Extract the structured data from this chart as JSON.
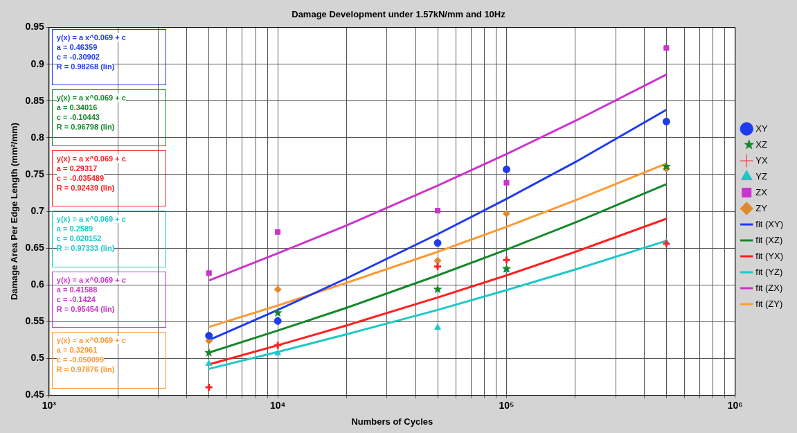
{
  "chart_data": {
    "type": "scatter",
    "title": "Damage Development under 1.57kN/mm and 10Hz",
    "xlabel": "Numbers of Cycles",
    "ylabel": "Damage Area Per Edge Length (mm²/mm)",
    "log": "x",
    "grid": true,
    "legend": "right",
    "xlim": [
      1000,
      1000000
    ],
    "xticks": [
      {
        "value": 1000,
        "label": "10³"
      },
      {
        "value": 2000,
        "label": null
      },
      {
        "value": 3000,
        "label": null
      },
      {
        "value": 4000,
        "label": null
      },
      {
        "value": 5000,
        "label": null
      },
      {
        "value": 6000,
        "label": null
      },
      {
        "value": 7000,
        "label": null
      },
      {
        "value": 8000,
        "label": null
      },
      {
        "value": 9000,
        "label": null
      },
      {
        "value": 10000,
        "label": "10⁴"
      },
      {
        "value": 20000,
        "label": null
      },
      {
        "value": 30000,
        "label": null
      },
      {
        "value": 40000,
        "label": null
      },
      {
        "value": 50000,
        "label": null
      },
      {
        "value": 60000,
        "label": null
      },
      {
        "value": 70000,
        "label": null
      },
      {
        "value": 80000,
        "label": null
      },
      {
        "value": 90000,
        "label": null
      },
      {
        "value": 100000,
        "label": "10⁵"
      },
      {
        "value": 200000,
        "label": null
      },
      {
        "value": 300000,
        "label": null
      },
      {
        "value": 400000,
        "label": null
      },
      {
        "value": 500000,
        "label": null
      },
      {
        "value": 600000,
        "label": null
      },
      {
        "value": 700000,
        "label": null
      },
      {
        "value": 800000,
        "label": null
      },
      {
        "value": 900000,
        "label": null
      },
      {
        "value": 1000000,
        "label": "10⁶"
      }
    ],
    "ylim": [
      0.45,
      0.95
    ],
    "yticks": [
      0.45,
      0.5,
      0.55,
      0.6,
      0.65,
      0.7,
      0.75,
      0.8,
      0.85,
      0.9,
      0.95
    ],
    "x": [
      5000,
      10000,
      50000,
      100000,
      500000
    ],
    "series": [
      {
        "name": "XY",
        "color": "#1f3bf0",
        "marker": "circle",
        "values": [
          0.531,
          0.551,
          0.657,
          0.757,
          0.822
        ]
      },
      {
        "name": "XZ",
        "color": "#14882a",
        "marker": "star",
        "values": [
          0.508,
          0.562,
          0.594,
          0.622,
          0.761
        ]
      },
      {
        "name": "YX",
        "color": "#ff2020",
        "marker": "cross",
        "values": [
          0.461,
          0.518,
          0.625,
          0.634,
          0.656
        ]
      },
      {
        "name": "YZ",
        "color": "#1ec8c8",
        "marker": "triangle",
        "values": [
          0.493,
          0.507,
          0.542,
          0.62,
          0.658
        ]
      },
      {
        "name": "ZX",
        "color": "#cc33cc",
        "marker": "square",
        "values": [
          0.616,
          0.672,
          0.701,
          0.739,
          0.922
        ]
      },
      {
        "name": "ZY",
        "color": "#e08a30",
        "marker": "diamond",
        "values": [
          0.524,
          0.594,
          0.633,
          0.697,
          0.758
        ]
      },
      {
        "name": "fit (XY)",
        "type": "line",
        "color": "#1f3bf0",
        "marker": "none",
        "x": [
          5000,
          10000,
          20000,
          50000,
          100000,
          200000,
          500000
        ],
        "values": [
          0.525,
          0.566,
          0.609,
          0.669,
          0.717,
          0.767,
          0.838
        ]
      },
      {
        "name": "fit (XZ)",
        "type": "line",
        "color": "#14882a",
        "marker": "none",
        "x": [
          5000,
          10000,
          20000,
          50000,
          100000,
          200000,
          500000
        ],
        "values": [
          0.508,
          0.538,
          0.569,
          0.613,
          0.648,
          0.685,
          0.737
        ]
      },
      {
        "name": "fit (YX)",
        "type": "line",
        "color": "#ff2020",
        "marker": "none",
        "x": [
          5000,
          10000,
          20000,
          50000,
          100000,
          200000,
          500000
        ],
        "values": [
          0.492,
          0.518,
          0.545,
          0.583,
          0.613,
          0.645,
          0.69
        ]
      },
      {
        "name": "fit (YZ)",
        "type": "line",
        "color": "#1ec8c8",
        "marker": "none",
        "x": [
          5000,
          10000,
          20000,
          50000,
          100000,
          200000,
          500000
        ],
        "values": [
          0.486,
          0.509,
          0.533,
          0.566,
          0.593,
          0.621,
          0.66
        ]
      },
      {
        "name": "fit (ZX)",
        "type": "line",
        "color": "#cc33cc",
        "marker": "none",
        "x": [
          5000,
          10000,
          20000,
          50000,
          100000,
          200000,
          500000
        ],
        "values": [
          0.606,
          0.643,
          0.681,
          0.735,
          0.778,
          0.823,
          0.886
        ]
      },
      {
        "name": "fit (ZY)",
        "type": "line",
        "color": "#ff9933",
        "marker": "none",
        "x": [
          5000,
          10000,
          20000,
          50000,
          100000,
          200000,
          500000
        ],
        "values": [
          0.543,
          0.572,
          0.603,
          0.645,
          0.679,
          0.715,
          0.765
        ]
      }
    ],
    "annotations": [
      "y(x) = a x^0.069 + c\na = 0.46359\nc = -0.30902\nR = 0.98268  (lin)",
      "y(x) = a x^0.069 + c\na = 0.34016\nc = -0.10443\nR = 0.96798  (lin)",
      "y(x) = a x^0.069 + c\na = 0.29317\nc = -0.035489\nR = 0.92439  (lin)",
      "y(x) = a x^0.069 + c\na = 0.2589\nc = 0.020152\nR = 0.97333  (lin)",
      "y(x) = a x^0.069 + c\na = 0.41588\nc = -0.1424\nR = 0.95454  (lin)",
      "y(x) = a x^0.069 + c\na = 0.32961\nc = -0.050099\nR = 0.97876  (lin)"
    ]
  }
}
